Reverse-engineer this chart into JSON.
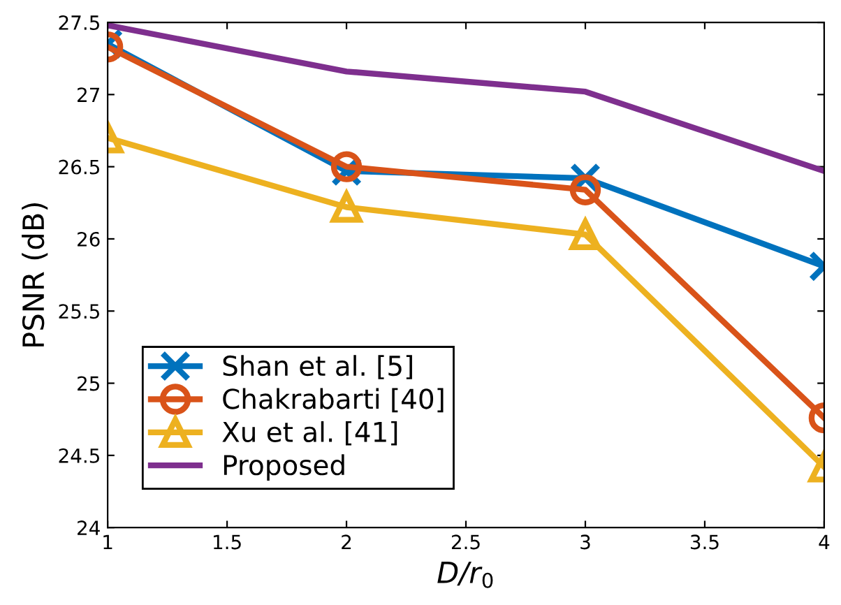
{
  "chart_data": {
    "type": "line",
    "xlabel": "D/r$_{0}$",
    "ylabel": "PSNR (dB)",
    "x": [
      1,
      2,
      3,
      4
    ],
    "series": [
      {
        "name": "Shan et al. [5]",
        "color": "#0072bd",
        "marker": "cross",
        "values": [
          27.35,
          26.47,
          26.42,
          25.81
        ]
      },
      {
        "name": "Chakrabarti [40]",
        "color": "#d95319",
        "marker": "circle",
        "values": [
          27.33,
          26.5,
          26.34,
          24.76
        ]
      },
      {
        "name": "Xu et al. [41]",
        "color": "#edb120",
        "marker": "triangle",
        "values": [
          26.7,
          26.22,
          26.03,
          24.42
        ]
      },
      {
        "name": "Proposed",
        "color": "#7e2f8e",
        "marker": "none",
        "values": [
          27.48,
          27.16,
          27.02,
          26.47
        ]
      }
    ],
    "xlim": [
      1,
      4
    ],
    "xticks": [
      1,
      1.5,
      2,
      2.5,
      3,
      3.5,
      4
    ],
    "ylim": [
      24,
      27.5
    ],
    "yticks": [
      24,
      24.5,
      25,
      25.5,
      26,
      26.5,
      27,
      27.5
    ],
    "grid": false,
    "legend": "bottom left",
    "line_style": "solid"
  }
}
